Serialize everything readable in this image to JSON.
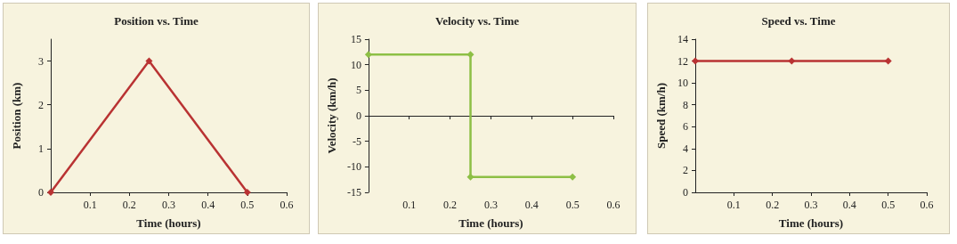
{
  "chart_data": [
    {
      "type": "line",
      "title": "Position vs. Time",
      "xlabel": "Time (hours)",
      "ylabel": "Position (km)",
      "x": [
        0,
        0.25,
        0.5
      ],
      "series": [
        {
          "color": "#b93333",
          "values": [
            0,
            3,
            0
          ]
        }
      ],
      "xlim": [
        0,
        0.6
      ],
      "ylim": [
        0,
        3.5
      ],
      "xticks": [
        0.1,
        0.2,
        0.3,
        0.4,
        0.5,
        0.6
      ],
      "yticks": [
        0,
        1,
        2,
        3
      ],
      "marker": "diamond",
      "line_style": "solid"
    },
    {
      "type": "line",
      "title": "Velocity vs. Time",
      "xlabel": "Time (hours)",
      "ylabel": "Velocity (km/h)",
      "x": [
        0,
        0.25,
        0.25,
        0.5
      ],
      "series": [
        {
          "color": "#8dbf45",
          "values": [
            12,
            12,
            -12,
            -12
          ]
        }
      ],
      "xlim": [
        0,
        0.6
      ],
      "ylim": [
        -15,
        15
      ],
      "xticks": [
        0.1,
        0.2,
        0.3,
        0.4,
        0.5,
        0.6
      ],
      "yticks": [
        -15,
        -10,
        -5,
        0,
        5,
        10,
        15
      ],
      "marker": "diamond",
      "line_style": "solid"
    },
    {
      "type": "line",
      "title": "Speed vs. Time",
      "xlabel": "Time (hours)",
      "ylabel": "Speed (km/h)",
      "x": [
        0,
        0.25,
        0.5
      ],
      "series": [
        {
          "color": "#b93333",
          "values": [
            12,
            12,
            12
          ]
        }
      ],
      "xlim": [
        0,
        0.6
      ],
      "ylim": [
        0,
        14
      ],
      "xticks": [
        0.1,
        0.2,
        0.3,
        0.4,
        0.5,
        0.6
      ],
      "yticks": [
        0,
        2,
        4,
        6,
        8,
        10,
        12,
        14
      ],
      "marker": "diamond",
      "line_style": "solid"
    }
  ]
}
